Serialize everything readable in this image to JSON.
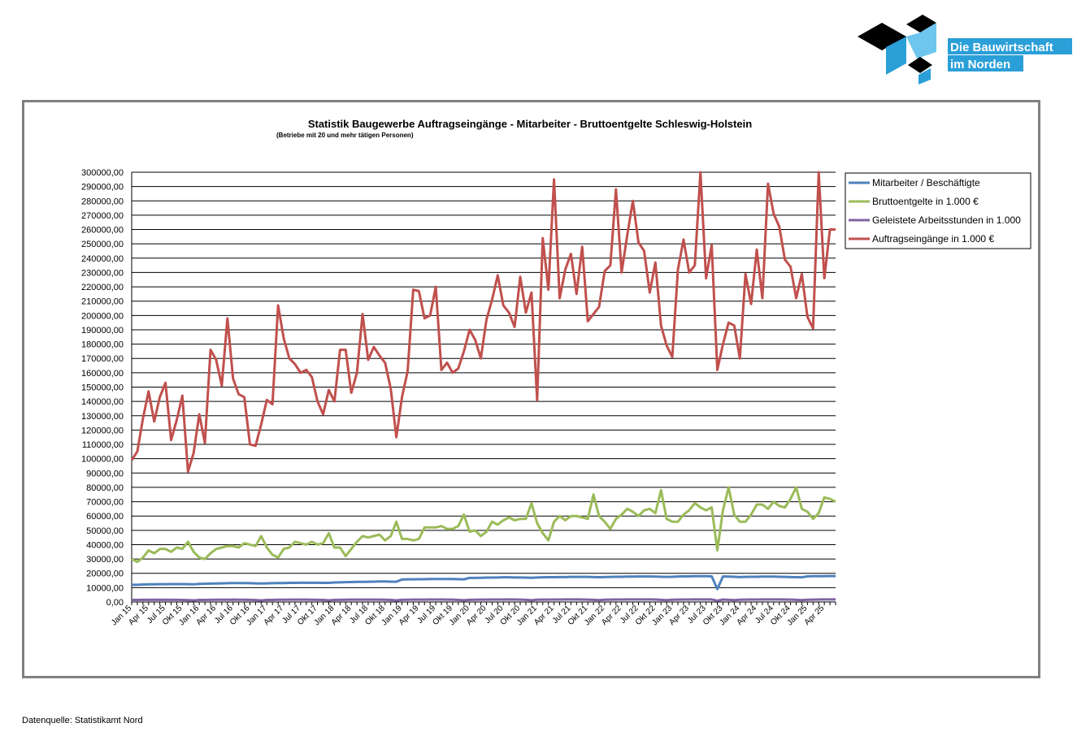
{
  "logo": {
    "line1": "Die Bauwirtschaft",
    "line2": "im Norden"
  },
  "footer": "Datenquelle: Statistikamt Nord",
  "chart_data": {
    "type": "line",
    "title": "Statistik Baugewerbe Auftragseingänge - Mitarbeiter - Bruttoentgelte Schleswig-Holstein",
    "subtitle": "(Betriebe mit 20 und mehr tätigen Personen)",
    "grid": true,
    "legend": "right",
    "ylim": [
      0,
      300000
    ],
    "yticks": [
      {
        "value": 0,
        "label": "0,00"
      },
      {
        "value": 10000,
        "label": "10000,00"
      },
      {
        "value": 20000,
        "label": "20000,00"
      },
      {
        "value": 30000,
        "label": "30000,00"
      },
      {
        "value": 40000,
        "label": "40000,00"
      },
      {
        "value": 50000,
        "label": "50000,00"
      },
      {
        "value": 60000,
        "label": "60000,00"
      },
      {
        "value": 70000,
        "label": "70000,00"
      },
      {
        "value": 80000,
        "label": "80000,00"
      },
      {
        "value": 90000,
        "label": "90000,00"
      },
      {
        "value": 100000,
        "label": "100000,00"
      },
      {
        "value": 110000,
        "label": "110000,00"
      },
      {
        "value": 120000,
        "label": "120000,00"
      },
      {
        "value": 130000,
        "label": "130000,00"
      },
      {
        "value": 140000,
        "label": "140000,00"
      },
      {
        "value": 150000,
        "label": "150000,00"
      },
      {
        "value": 160000,
        "label": "160000,00"
      },
      {
        "value": 170000,
        "label": "170000,00"
      },
      {
        "value": 180000,
        "label": "180000,00"
      },
      {
        "value": 190000,
        "label": "190000,00"
      },
      {
        "value": 200000,
        "label": "200000,00"
      },
      {
        "value": 210000,
        "label": "210000,00"
      },
      {
        "value": 220000,
        "label": "220000,00"
      },
      {
        "value": 230000,
        "label": "230000,00"
      },
      {
        "value": 240000,
        "label": "240000,00"
      },
      {
        "value": 250000,
        "label": "250000,00"
      },
      {
        "value": 260000,
        "label": "260000,00"
      },
      {
        "value": 270000,
        "label": "270000,00"
      },
      {
        "value": 280000,
        "label": "280000,00"
      },
      {
        "value": 290000,
        "label": "290000,00"
      },
      {
        "value": 300000,
        "label": "300000,00"
      }
    ],
    "categories": [
      "Jan 15",
      null,
      null,
      "Apr 15",
      null,
      null,
      "Jul 15",
      null,
      null,
      "Okt 15",
      null,
      null,
      "Jan 16",
      null,
      null,
      "Apr 16",
      null,
      null,
      "Jul 16",
      null,
      null,
      "Okt 16",
      null,
      null,
      "Jan 17",
      null,
      null,
      "Apr 17",
      null,
      null,
      "Jul 17",
      null,
      null,
      "Okt 17",
      null,
      null,
      "Jan 18",
      null,
      null,
      "Apr 18",
      null,
      null,
      "Jul 18",
      null,
      null,
      "Okt 18",
      null,
      null,
      "Jan 19",
      null,
      null,
      "Apr 19",
      null,
      null,
      "Jul 19",
      null,
      null,
      "Okt 19",
      null,
      null,
      "Jan 20",
      null,
      null,
      "Apr 20",
      null,
      null,
      "Jul 20",
      null,
      null,
      "Okt 20",
      null,
      null,
      "Jan 21",
      null,
      null,
      "Apr 21",
      null,
      null,
      "Jul 21",
      null,
      null,
      "Okt 21",
      null,
      null,
      "Jan 22",
      null,
      null,
      "Apr 22",
      null,
      null,
      "Jul 22",
      null,
      null,
      "Okt 22",
      null,
      null,
      "Jan 23",
      null,
      null,
      "Apr 23",
      null,
      null,
      "Jul 23",
      null,
      null,
      "Okt 23",
      null,
      null,
      "Jan 24",
      null,
      null,
      "Apr 24",
      null,
      null,
      "Jul 24",
      null,
      null,
      "Okt 24",
      null,
      null,
      "Jan 25",
      null,
      null,
      "Apr 25",
      null,
      null
    ],
    "series": [
      {
        "name": "Mitarbeiter / Beschäftigte",
        "color": "#4f81bd",
        "values": [
          12000,
          12000,
          12200,
          12300,
          12300,
          12400,
          12400,
          12500,
          12500,
          12500,
          12400,
          12300,
          12600,
          12700,
          12800,
          12900,
          13000,
          13100,
          13200,
          13200,
          13200,
          13100,
          13000,
          12900,
          13000,
          13100,
          13200,
          13200,
          13300,
          13300,
          13400,
          13400,
          13400,
          13400,
          13300,
          13300,
          13600,
          13700,
          13800,
          13900,
          14000,
          14000,
          14100,
          14200,
          14300,
          14300,
          14200,
          14100,
          15700,
          15800,
          15800,
          15900,
          15900,
          16000,
          16000,
          16000,
          16000,
          16000,
          15900,
          15800,
          16800,
          16800,
          16900,
          17000,
          17000,
          17100,
          17200,
          17200,
          17100,
          17100,
          17000,
          16900,
          17100,
          17200,
          17300,
          17300,
          17400,
          17400,
          17500,
          17500,
          17500,
          17500,
          17400,
          17300,
          17400,
          17500,
          17600,
          17600,
          17700,
          17700,
          17800,
          17800,
          17800,
          17700,
          17600,
          17500,
          17600,
          17800,
          17900,
          17900,
          18000,
          18000,
          18000,
          17900,
          9000,
          17800,
          17700,
          17600,
          17400,
          17500,
          17600,
          17600,
          17700,
          17700,
          17700,
          17600,
          17500,
          17400,
          17300,
          17200,
          17900,
          18000,
          18000,
          18000,
          18100,
          18100
        ]
      },
      {
        "name": "Bruttoentgelte in 1.000 €",
        "color": "#9bbb59",
        "values": [
          30000,
          28000,
          31000,
          36000,
          34000,
          37000,
          37000,
          35000,
          38000,
          37000,
          42000,
          35000,
          31000,
          30000,
          34000,
          37000,
          38000,
          39000,
          39000,
          38000,
          41000,
          40000,
          39000,
          46000,
          38000,
          33000,
          31000,
          37000,
          38000,
          42000,
          41000,
          40000,
          42000,
          40000,
          41000,
          48000,
          38000,
          38000,
          32000,
          37000,
          42000,
          46000,
          45000,
          46000,
          47000,
          43000,
          46000,
          56000,
          44000,
          44000,
          43000,
          44000,
          52000,
          52000,
          52000,
          53000,
          51000,
          51000,
          53000,
          61000,
          49000,
          50000,
          46000,
          49000,
          56000,
          54000,
          57000,
          59000,
          57000,
          58000,
          58000,
          69000,
          55000,
          48000,
          43000,
          56000,
          60000,
          57000,
          60000,
          60000,
          59000,
          58000,
          75000,
          60000,
          56000,
          51000,
          58000,
          61000,
          65000,
          63000,
          60000,
          64000,
          65000,
          62000,
          78000,
          58000,
          56000,
          56000,
          61000,
          64000,
          69000,
          66000,
          64000,
          66000,
          36000,
          64000,
          80000,
          61000,
          56000,
          56000,
          61000,
          68000,
          68000,
          65000,
          70000,
          67000,
          66000,
          72000,
          80000,
          65000,
          63000,
          58000,
          62000,
          73000,
          72000,
          70000
        ]
      },
      {
        "name": "Geleistete Arbeitsstunden in 1.000",
        "color": "#8064a2",
        "values": [
          1400,
          1450,
          1500,
          1500,
          1550,
          1500,
          1550,
          1500,
          1500,
          1450,
          1300,
          1100,
          1400,
          1450,
          1500,
          1550,
          1550,
          1550,
          1600,
          1550,
          1550,
          1500,
          1350,
          1100,
          1450,
          1450,
          1550,
          1550,
          1600,
          1600,
          1600,
          1600,
          1550,
          1500,
          1400,
          1150,
          1450,
          1500,
          1550,
          1600,
          1600,
          1650,
          1650,
          1650,
          1600,
          1550,
          1400,
          1150,
          1500,
          1550,
          1600,
          1650,
          1650,
          1700,
          1700,
          1700,
          1650,
          1600,
          1450,
          1200,
          1500,
          1550,
          1600,
          1650,
          1700,
          1700,
          1700,
          1750,
          1700,
          1650,
          1500,
          1200,
          1550,
          1600,
          1650,
          1700,
          1700,
          1750,
          1750,
          1750,
          1700,
          1650,
          1500,
          1250,
          1550,
          1600,
          1700,
          1700,
          1750,
          1750,
          1800,
          1750,
          1750,
          1700,
          1500,
          1250,
          1550,
          1650,
          1700,
          1700,
          1750,
          1800,
          1800,
          1750,
          900,
          1700,
          1500,
          1250,
          1550,
          1600,
          1700,
          1700,
          1750,
          1750,
          1800,
          1750,
          1700,
          1650,
          1500,
          1250,
          1550,
          1650,
          1700,
          1750,
          1750,
          1800
        ]
      },
      {
        "name": "Auftragseingänge in 1.000 €",
        "color": "#c0504d",
        "values": [
          99000,
          105000,
          128000,
          147000,
          126000,
          143000,
          153000,
          113000,
          127000,
          144000,
          91000,
          104000,
          131000,
          111000,
          176000,
          169000,
          151000,
          198000,
          156000,
          145000,
          143000,
          110000,
          109000,
          124000,
          141000,
          138000,
          207000,
          184000,
          170000,
          166000,
          160000,
          162000,
          157000,
          140000,
          131000,
          148000,
          140000,
          176000,
          176000,
          146000,
          160000,
          201000,
          169000,
          178000,
          172000,
          167000,
          149000,
          115000,
          143000,
          161000,
          218000,
          217000,
          198000,
          200000,
          220000,
          162000,
          167000,
          160000,
          163000,
          175000,
          190000,
          183000,
          170000,
          197000,
          211000,
          228000,
          207000,
          202000,
          192000,
          227000,
          202000,
          216000,
          141000,
          254000,
          218000,
          295000,
          212000,
          232000,
          243000,
          215000,
          248000,
          196000,
          201000,
          206000,
          231000,
          235000,
          288000,
          230000,
          256000,
          280000,
          251000,
          245000,
          216000,
          237000,
          193000,
          179000,
          171000,
          232000,
          253000,
          230000,
          235000,
          300000,
          226000,
          249000,
          162000,
          180000,
          195000,
          193000,
          170000,
          229000,
          208000,
          246000,
          212000,
          292000,
          271000,
          262000,
          239000,
          234000,
          212000,
          229000,
          199000,
          191000,
          300000,
          226000,
          260000,
          260000
        ]
      }
    ]
  }
}
